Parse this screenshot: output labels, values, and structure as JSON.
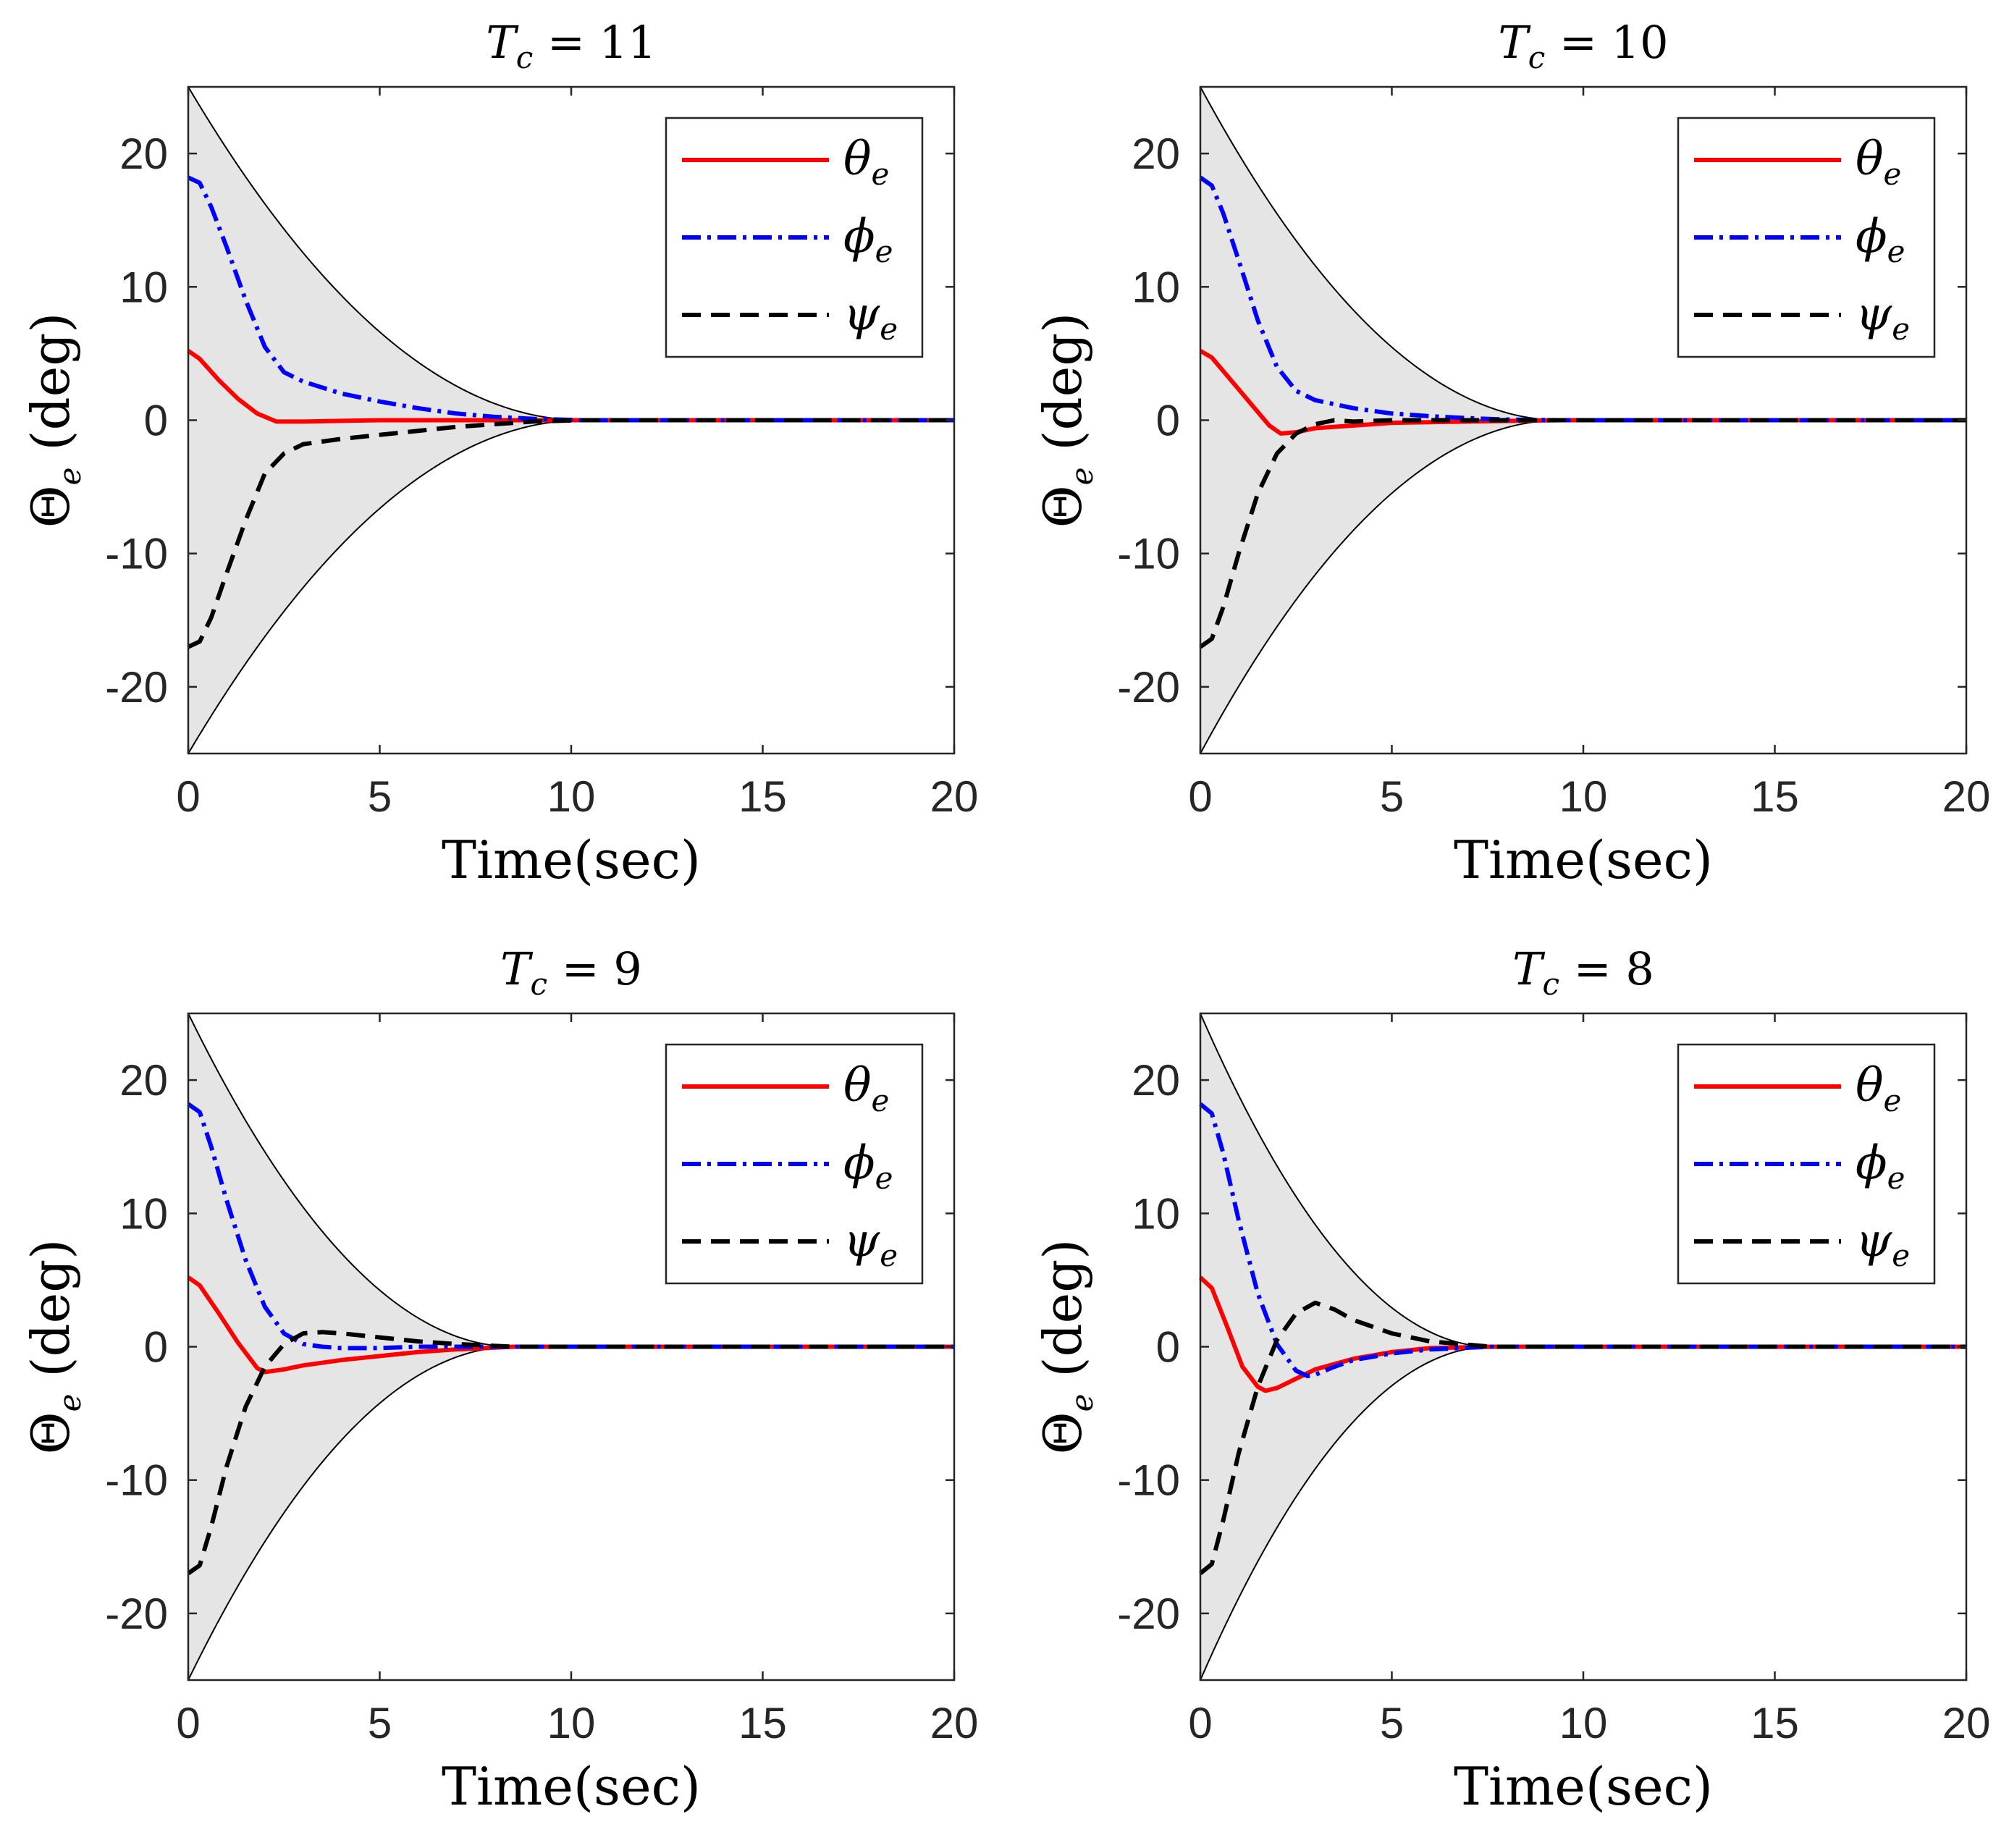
{
  "chart_data": [
    {
      "type": "line",
      "title": {
        "prefix": "T",
        "sub": "c",
        "suffix": " = 11"
      },
      "xlabel": "Time(sec)",
      "ylabel": {
        "main": "Θ",
        "sub": "e",
        "rest": " (deg)"
      },
      "xlim": [
        0,
        20
      ],
      "ylim": [
        -25,
        25
      ],
      "xticks": [
        0,
        5,
        10,
        15,
        20
      ],
      "yticks": [
        -20,
        -10,
        0,
        10,
        20
      ],
      "xtick_labels": [
        "0",
        "5",
        "10",
        "15",
        "20"
      ],
      "ytick_labels": [
        "-20",
        "-10",
        "0",
        "10",
        "20"
      ],
      "envelope": {
        "initial": 25,
        "converge_time": 10.3,
        "fill": "#e5e5e5"
      },
      "legend_position": "top-right",
      "series": [
        {
          "name": "θ",
          "sub": "e",
          "color": "#ff0000",
          "dash": "solid",
          "x": [
            0,
            0.3,
            0.8,
            1.3,
            1.8,
            2.3,
            3,
            5,
            8,
            20
          ],
          "y": [
            5.2,
            4.6,
            3.0,
            1.6,
            0.5,
            -0.1,
            -0.1,
            0.0,
            0.0,
            0.0
          ]
        },
        {
          "name": "ϕ",
          "sub": "e",
          "color": "#0000ff",
          "dash": "dashdot",
          "x": [
            0,
            0.3,
            0.6,
            1.0,
            1.5,
            2.0,
            2.5,
            3.0,
            4.0,
            5.0,
            6.0,
            7.0,
            8.0,
            9.0,
            10.3,
            20
          ],
          "y": [
            18.2,
            17.8,
            16.0,
            13.0,
            9.0,
            5.5,
            3.6,
            2.9,
            2.0,
            1.4,
            0.9,
            0.5,
            0.25,
            0.1,
            0.0,
            0.0
          ]
        },
        {
          "name": "ψ",
          "sub": "e",
          "color": "#000000",
          "dash": "dashed",
          "x": [
            0,
            0.3,
            0.6,
            1.0,
            1.5,
            2.0,
            2.5,
            3.0,
            4.0,
            5.0,
            6.0,
            7.0,
            8.0,
            9.0,
            10.3,
            20
          ],
          "y": [
            -17.0,
            -16.6,
            -14.8,
            -11.5,
            -7.5,
            -4.0,
            -2.5,
            -1.8,
            -1.4,
            -1.1,
            -0.8,
            -0.5,
            -0.3,
            -0.1,
            0.0,
            0.0
          ]
        }
      ]
    },
    {
      "type": "line",
      "title": {
        "prefix": "T",
        "sub": "c",
        "suffix": " = 10"
      },
      "xlabel": "Time(sec)",
      "ylabel": {
        "main": "Θ",
        "sub": "e",
        "rest": " (deg)"
      },
      "xlim": [
        0,
        20
      ],
      "ylim": [
        -25,
        25
      ],
      "xticks": [
        0,
        5,
        10,
        15,
        20
      ],
      "yticks": [
        -20,
        -10,
        0,
        10,
        20
      ],
      "xtick_labels": [
        "0",
        "5",
        "10",
        "15",
        "20"
      ],
      "ytick_labels": [
        "-20",
        "-10",
        "0",
        "10",
        "20"
      ],
      "envelope": {
        "initial": 25,
        "converge_time": 9.4,
        "fill": "#e5e5e5"
      },
      "legend_position": "top-right",
      "series": [
        {
          "name": "θ",
          "sub": "e",
          "color": "#ff0000",
          "dash": "solid",
          "x": [
            0,
            0.3,
            0.8,
            1.3,
            1.8,
            2.1,
            2.5,
            3.0,
            4.0,
            5.0,
            7.0,
            9.4,
            20
          ],
          "y": [
            5.2,
            4.7,
            3.0,
            1.3,
            -0.4,
            -1.0,
            -0.9,
            -0.6,
            -0.4,
            -0.2,
            -0.1,
            0.0,
            0.0
          ]
        },
        {
          "name": "ϕ",
          "sub": "e",
          "color": "#0000ff",
          "dash": "dashdot",
          "x": [
            0,
            0.3,
            0.6,
            1.0,
            1.5,
            2.0,
            2.5,
            3.0,
            3.5,
            4.0,
            5.0,
            6.0,
            7.0,
            8.0,
            9.4,
            20
          ],
          "y": [
            18.2,
            17.6,
            15.5,
            12.0,
            7.5,
            4.0,
            2.2,
            1.5,
            1.2,
            0.9,
            0.5,
            0.3,
            0.15,
            0.05,
            0.0,
            0.0
          ]
        },
        {
          "name": "ψ",
          "sub": "e",
          "color": "#000000",
          "dash": "dashed",
          "x": [
            0,
            0.3,
            0.6,
            1.0,
            1.5,
            2.0,
            2.5,
            3.0,
            3.5,
            4.0,
            5.0,
            6.0,
            7.0,
            9.4,
            20
          ],
          "y": [
            -17.0,
            -16.4,
            -14.0,
            -10.0,
            -5.5,
            -2.5,
            -1.0,
            -0.3,
            0.0,
            -0.1,
            0.0,
            0.0,
            0.0,
            0.0,
            0.0
          ]
        }
      ]
    },
    {
      "type": "line",
      "title": {
        "prefix": "T",
        "sub": "c",
        "suffix": " = 9"
      },
      "xlabel": "Time(sec)",
      "ylabel": {
        "main": "Θ",
        "sub": "e",
        "rest": " (deg)"
      },
      "xlim": [
        0,
        20
      ],
      "ylim": [
        -25,
        25
      ],
      "xticks": [
        0,
        5,
        10,
        15,
        20
      ],
      "yticks": [
        -20,
        -10,
        0,
        10,
        20
      ],
      "xtick_labels": [
        "0",
        "5",
        "10",
        "15",
        "20"
      ],
      "ytick_labels": [
        "-20",
        "-10",
        "0",
        "10",
        "20"
      ],
      "envelope": {
        "initial": 25,
        "converge_time": 8.5,
        "fill": "#e5e5e5"
      },
      "legend_position": "top-right",
      "series": [
        {
          "name": "θ",
          "sub": "e",
          "color": "#ff0000",
          "dash": "solid",
          "x": [
            0,
            0.3,
            0.8,
            1.3,
            1.8,
            2.0,
            2.5,
            3.0,
            4.0,
            5.0,
            6.0,
            7.0,
            8.5,
            20
          ],
          "y": [
            5.2,
            4.6,
            2.5,
            0.3,
            -1.6,
            -1.9,
            -1.7,
            -1.4,
            -1.0,
            -0.7,
            -0.4,
            -0.2,
            0.0,
            0.0
          ]
        },
        {
          "name": "ϕ",
          "sub": "e",
          "color": "#0000ff",
          "dash": "dashdot",
          "x": [
            0,
            0.3,
            0.6,
            1.0,
            1.5,
            2.0,
            2.5,
            3.0,
            3.5,
            4.0,
            5.0,
            6.0,
            8.5,
            20
          ],
          "y": [
            18.2,
            17.6,
            15.0,
            11.0,
            6.5,
            3.0,
            1.0,
            0.2,
            0.0,
            -0.1,
            -0.1,
            0.0,
            0.0,
            0.0
          ]
        },
        {
          "name": "ψ",
          "sub": "e",
          "color": "#000000",
          "dash": "dashed",
          "x": [
            0,
            0.3,
            0.6,
            1.0,
            1.5,
            2.0,
            2.5,
            3.0,
            3.5,
            4.0,
            5.0,
            6.0,
            7.0,
            8.5,
            20
          ],
          "y": [
            -17.0,
            -16.4,
            -13.5,
            -9.0,
            -4.5,
            -1.5,
            0.2,
            1.0,
            1.1,
            1.0,
            0.7,
            0.4,
            0.2,
            0.0,
            0.0
          ]
        }
      ]
    },
    {
      "type": "line",
      "title": {
        "prefix": "T",
        "sub": "c",
        "suffix": " = 8"
      },
      "xlabel": "Time(sec)",
      "ylabel": {
        "main": "Θ",
        "sub": "e",
        "rest": " (deg)"
      },
      "xlim": [
        0,
        20
      ],
      "ylim": [
        -25,
        25
      ],
      "xticks": [
        0,
        5,
        10,
        15,
        20
      ],
      "yticks": [
        -20,
        -10,
        0,
        10,
        20
      ],
      "xtick_labels": [
        "0",
        "5",
        "10",
        "15",
        "20"
      ],
      "ytick_labels": [
        "-20",
        "-10",
        "0",
        "10",
        "20"
      ],
      "envelope": {
        "initial": 25,
        "converge_time": 7.6,
        "fill": "#e5e5e5"
      },
      "legend_position": "top-right",
      "series": [
        {
          "name": "θ",
          "sub": "e",
          "color": "#ff0000",
          "dash": "solid",
          "x": [
            0,
            0.3,
            0.7,
            1.1,
            1.5,
            1.7,
            2.0,
            2.5,
            3.0,
            4.0,
            5.0,
            6.0,
            7.6,
            20
          ],
          "y": [
            5.2,
            4.4,
            1.5,
            -1.5,
            -3.0,
            -3.3,
            -3.1,
            -2.4,
            -1.7,
            -0.9,
            -0.4,
            -0.1,
            0.0,
            0.0
          ]
        },
        {
          "name": "ϕ",
          "sub": "e",
          "color": "#0000ff",
          "dash": "dashdot",
          "x": [
            0,
            0.3,
            0.6,
            1.0,
            1.5,
            2.0,
            2.5,
            2.8,
            3.0,
            3.5,
            4.0,
            5.0,
            6.0,
            7.6,
            20
          ],
          "y": [
            18.2,
            17.5,
            14.5,
            9.5,
            4.0,
            0.2,
            -1.8,
            -2.2,
            -2.1,
            -1.5,
            -1.0,
            -0.5,
            -0.2,
            0.0,
            0.0
          ]
        },
        {
          "name": "ψ",
          "sub": "e",
          "color": "#000000",
          "dash": "dashed",
          "x": [
            0,
            0.3,
            0.6,
            1.0,
            1.5,
            2.0,
            2.5,
            3.0,
            3.5,
            4.0,
            5.0,
            6.0,
            7.6,
            20
          ],
          "y": [
            -17.0,
            -16.3,
            -13.0,
            -8.0,
            -3.0,
            0.5,
            2.5,
            3.3,
            2.8,
            2.0,
            1.0,
            0.4,
            0.0,
            0.0
          ]
        }
      ]
    }
  ]
}
